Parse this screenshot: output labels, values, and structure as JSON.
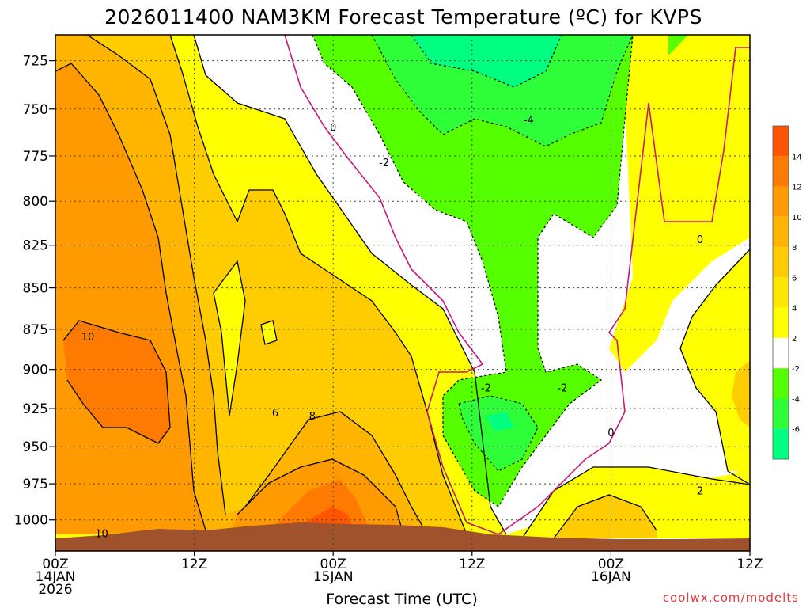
{
  "chart_data": {
    "type": "heatmap",
    "title": "2026011400 NAM3KM Forecast Temperature (ºC) for KVPS",
    "xlabel": "Forecast Time (UTC)",
    "x_ticks": [
      {
        "hour": 0,
        "line1": "00Z",
        "line2": "14JAN",
        "line3": "2026"
      },
      {
        "hour": 12,
        "line1": "12Z",
        "line2": "",
        "line3": ""
      },
      {
        "hour": 24,
        "line1": "00Z",
        "line2": "15JAN",
        "line3": ""
      },
      {
        "hour": 36,
        "line1": "12Z",
        "line2": "",
        "line3": ""
      },
      {
        "hour": 48,
        "line1": "00Z",
        "line2": "16JAN",
        "line3": ""
      },
      {
        "hour": 60,
        "line1": "12Z",
        "line2": "",
        "line3": ""
      }
    ],
    "xlim_hours": [
      0,
      60
    ],
    "y_ticks": [
      "725",
      "750",
      "775",
      "800",
      "825",
      "850",
      "875",
      "900",
      "925",
      "950",
      "975",
      "1000"
    ],
    "y_values_hpa": [
      725,
      750,
      775,
      800,
      825,
      850,
      875,
      900,
      925,
      950,
      975,
      1000
    ],
    "ylim_hpa": [
      712,
      1022
    ],
    "yscale": "log",
    "grid": true,
    "colorbar": {
      "labels": [
        "14",
        "12",
        "10",
        "8",
        "6",
        "4",
        "2",
        "-2",
        "-4",
        "-6"
      ],
      "levels": [
        16,
        14,
        12,
        10,
        8,
        6,
        4,
        2,
        -2,
        -4,
        -6,
        -8
      ],
      "colors": [
        "#ff5500",
        "#ff7a00",
        "#ff9a00",
        "#ffb400",
        "#ffcc00",
        "#ffe600",
        "#ffff00",
        "#ffffff",
        "#55ff00",
        "#2eff38",
        "#00ff80"
      ]
    },
    "contour_labels": [
      {
        "text": "10",
        "hour": 2.8,
        "hpa": 880
      },
      {
        "text": "10",
        "hour": 4.0,
        "hpa": 1010
      },
      {
        "text": "6",
        "hour": 19.0,
        "hpa": 928
      },
      {
        "text": "8",
        "hour": 22.2,
        "hpa": 930
      },
      {
        "text": "0",
        "hour": 24.0,
        "hpa": 760
      },
      {
        "text": "-2",
        "hour": 28.4,
        "hpa": 779
      },
      {
        "text": "-4",
        "hour": 40.9,
        "hpa": 756
      },
      {
        "text": "-2",
        "hour": 37.2,
        "hpa": 912
      },
      {
        "text": "-2",
        "hour": 43.8,
        "hpa": 912
      },
      {
        "text": "0",
        "hour": 48.0,
        "hpa": 941
      },
      {
        "text": "0",
        "hour": 55.7,
        "hpa": 822
      },
      {
        "text": "2",
        "hour": 55.7,
        "hpa": 980
      }
    ],
    "terrain_color": "#a0522d",
    "credit": "coolwx.com/modelts"
  }
}
